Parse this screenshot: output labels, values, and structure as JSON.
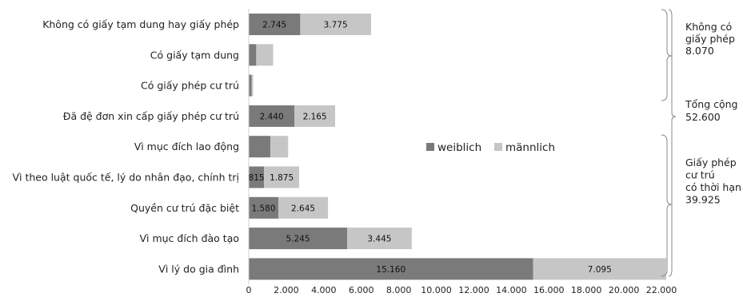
{
  "chart_data": {
    "type": "bar",
    "orientation": "horizontal",
    "stacked": true,
    "categories": [
      "Không có giấy tạm dung hay giấy phép",
      "Có giấy tạm dung",
      "Có giấy phép cư trú",
      "Đã đệ đơn xin cấp giấy phép cư trú",
      "Vì mục đích lao động",
      "Vì theo luật quốc tế, lý do nhân đạo, chính trị",
      "Quyền cư trú đặc biệt",
      "Vì mục đích đào tạo",
      "Vì lý do gia đình"
    ],
    "series": [
      {
        "name": "weiblich",
        "color": "#7a7a7a",
        "values": [
          2745,
          400,
          150,
          2440,
          1150,
          815,
          1580,
          5245,
          15160
        ],
        "labels": [
          "2.745",
          "",
          "",
          "2.440",
          "",
          "815",
          "1.580",
          "5.245",
          "15.160"
        ]
      },
      {
        "name": "männlich",
        "color": "#c6c6c6",
        "values": [
          3775,
          900,
          80,
          2165,
          950,
          1875,
          2645,
          3445,
          7095
        ],
        "labels": [
          "3.775",
          "",
          "",
          "2.165",
          "",
          "1.875",
          "2.645",
          "3.445",
          "7.095"
        ]
      }
    ],
    "xlim": [
      0,
      22000
    ],
    "xticks": [
      0,
      2000,
      4000,
      6000,
      8000,
      10000,
      12000,
      14000,
      16000,
      18000,
      20000,
      22000
    ],
    "xtick_labels": [
      "0",
      "2.000",
      "4.000",
      "6.000",
      "8.000",
      "10.000",
      "12.000",
      "14.000",
      "16.000",
      "18.000",
      "20.000",
      "22.000"
    ],
    "grid": false,
    "legend_position": "center-right",
    "annotations": [
      {
        "lines": [
          "Không có",
          "giấy phép",
          "8.070"
        ]
      },
      {
        "lines": [
          "Tổng cộng",
          "52.600"
        ]
      },
      {
        "lines": [
          "Giấy phép",
          "cư trú",
          "có thời hạn",
          "39.925"
        ]
      }
    ]
  }
}
